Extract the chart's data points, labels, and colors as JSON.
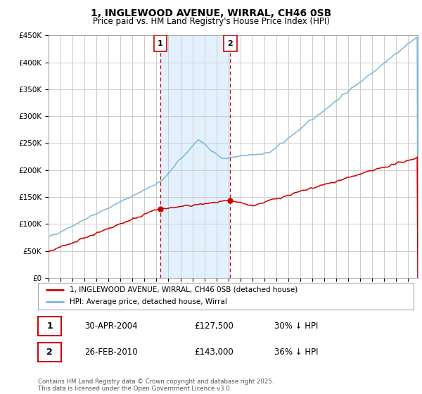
{
  "title": "1, INGLEWOOD AVENUE, WIRRAL, CH46 0SB",
  "subtitle": "Price paid vs. HM Land Registry's House Price Index (HPI)",
  "ylabel_ticks": [
    "£0",
    "£50K",
    "£100K",
    "£150K",
    "£200K",
    "£250K",
    "£300K",
    "£350K",
    "£400K",
    "£450K"
  ],
  "ylim": [
    0,
    450000
  ],
  "xlim_start": 1995.0,
  "xlim_end": 2025.8,
  "sale1_x": 2004.33,
  "sale1_y": 127500,
  "sale2_x": 2010.16,
  "sale2_y": 143000,
  "sale1_label": "30-APR-2004",
  "sale2_label": "26-FEB-2010",
  "sale1_price": "£127,500",
  "sale2_price": "£143,000",
  "sale1_hpi": "30% ↓ HPI",
  "sale2_hpi": "36% ↓ HPI",
  "hpi_color": "#7ab8d9",
  "price_color": "#cc0000",
  "vline_color": "#cc0000",
  "shade_color": "#ddeeff",
  "legend_line1": "1, INGLEWOOD AVENUE, WIRRAL, CH46 0SB (detached house)",
  "legend_line2": "HPI: Average price, detached house, Wirral",
  "footnote": "Contains HM Land Registry data © Crown copyright and database right 2025.\nThis data is licensed under the Open Government Licence v3.0.",
  "background_color": "#ffffff",
  "grid_color": "#cccccc"
}
